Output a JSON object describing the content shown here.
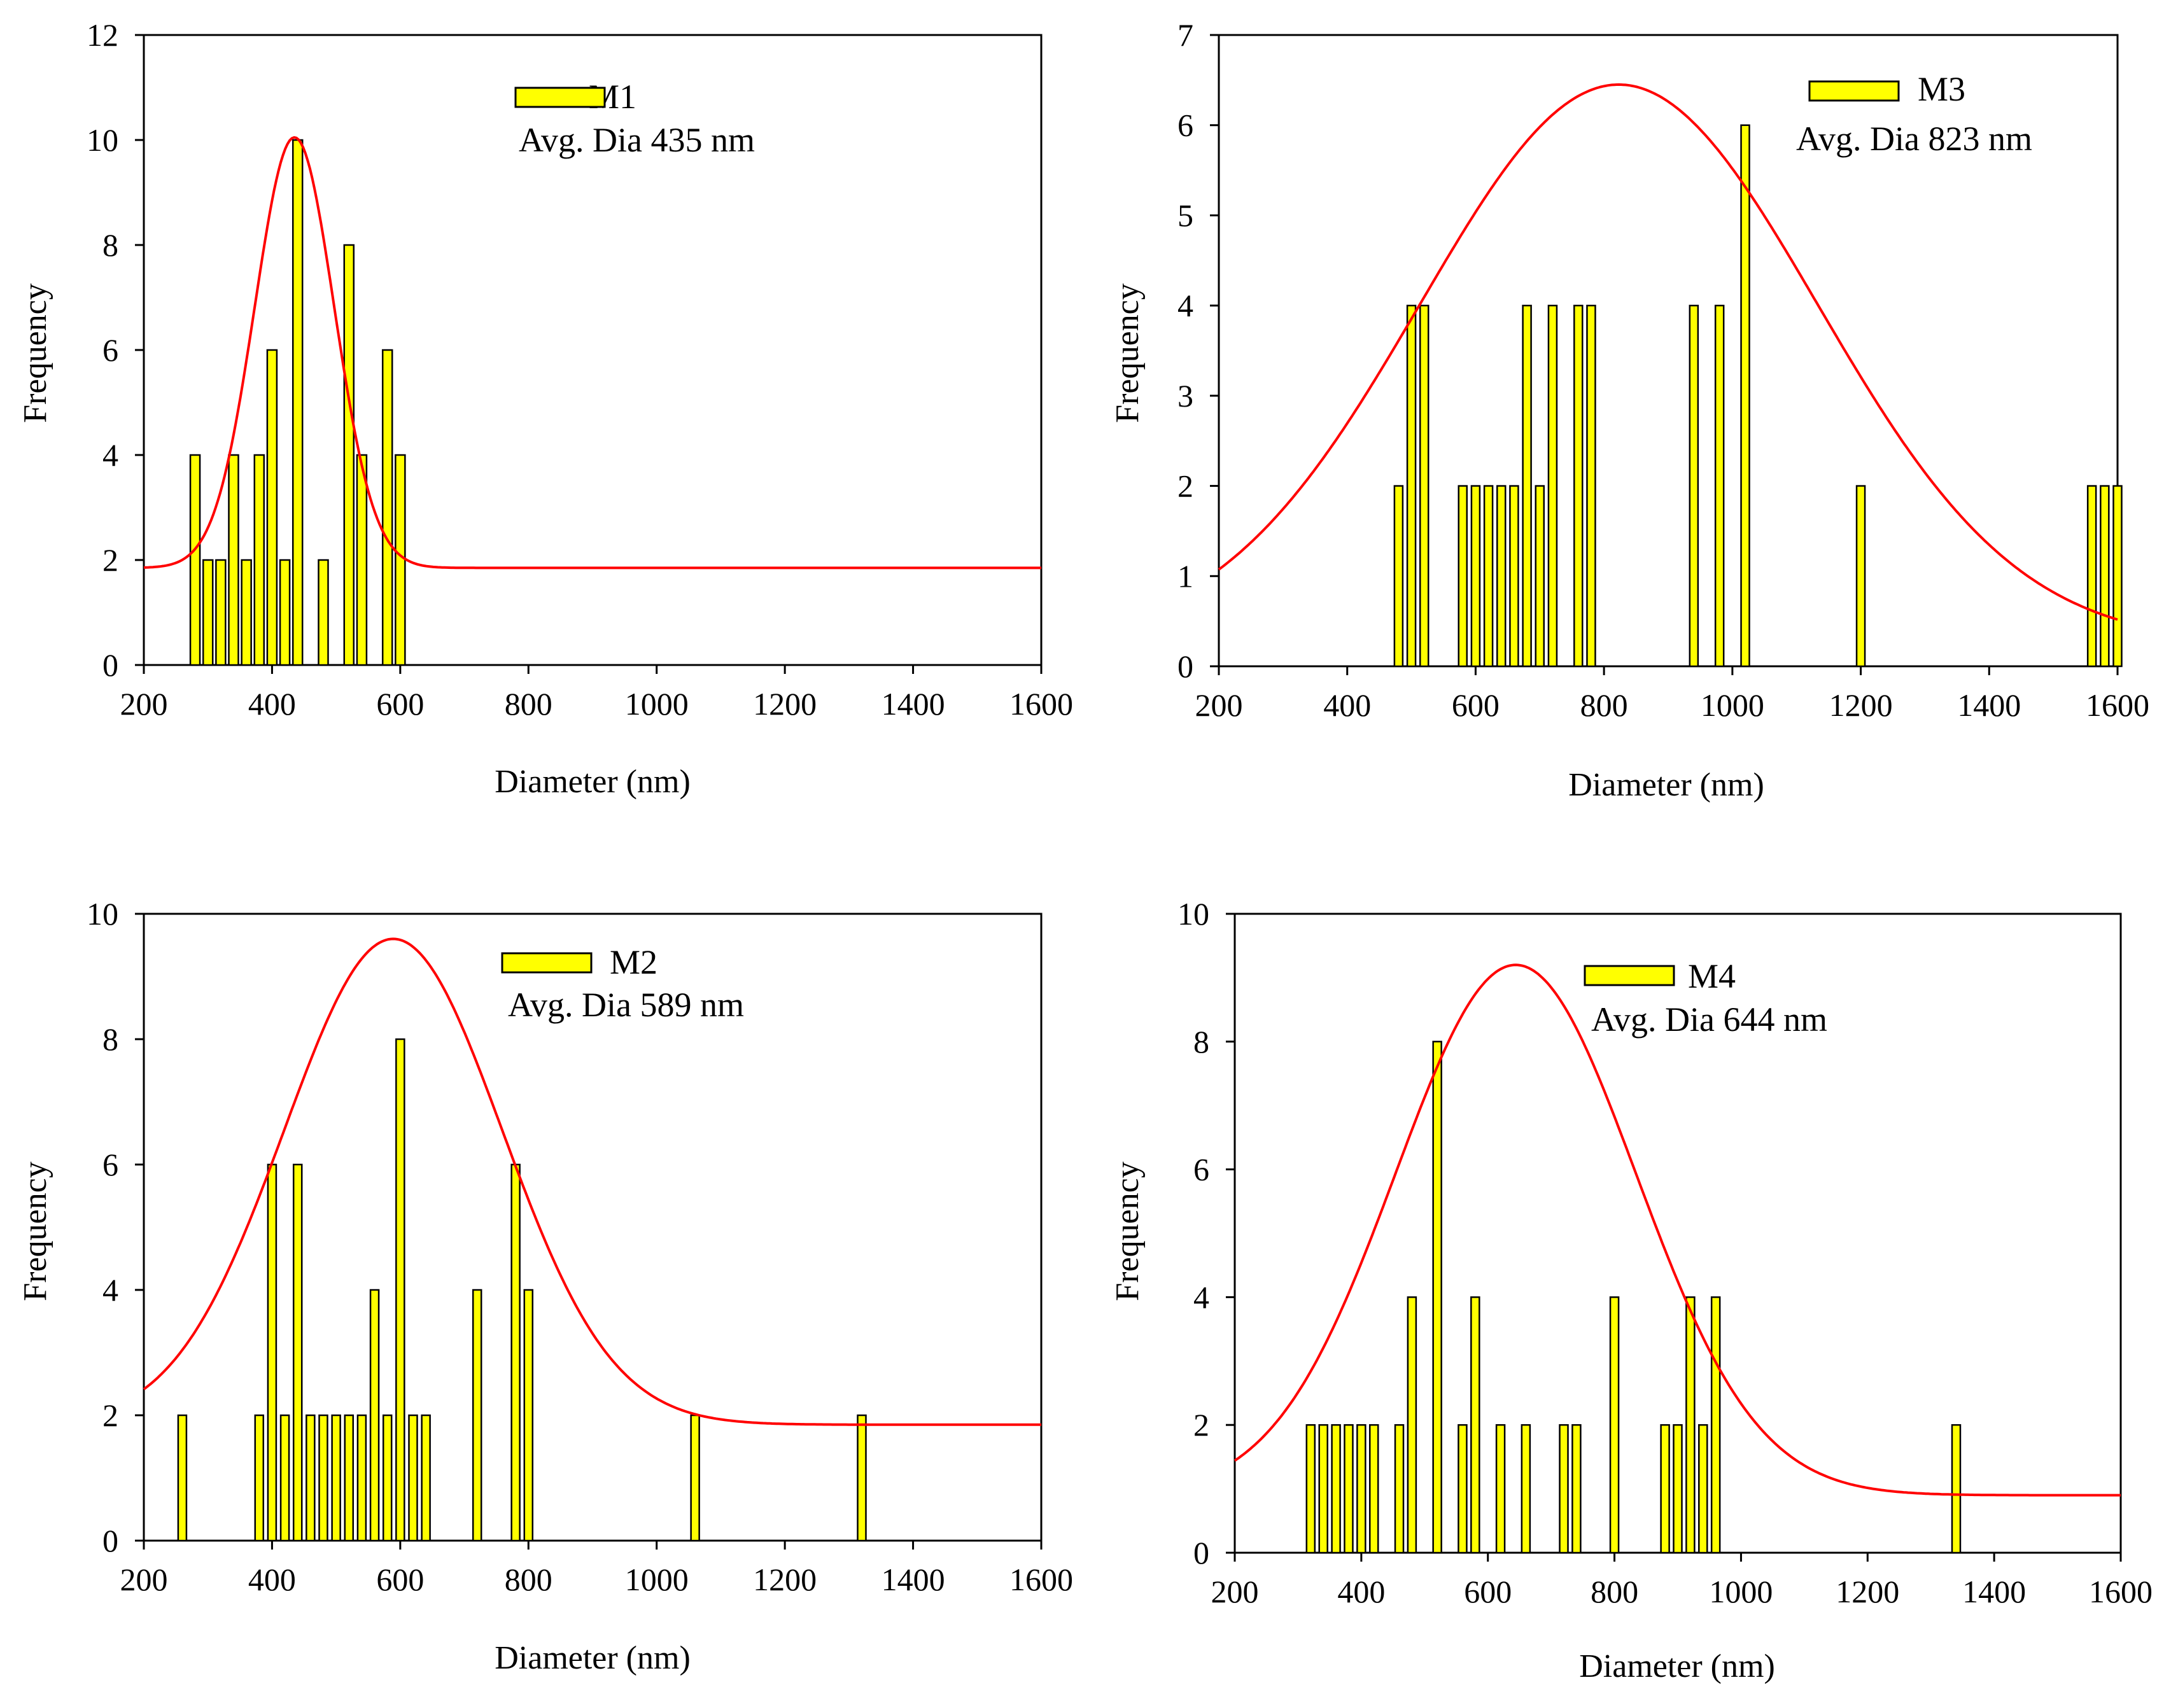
{
  "colors": {
    "bar_fill": "#ffff00",
    "bar_stroke": "#000000",
    "fit_line": "#ff0000",
    "axis": "#000000"
  },
  "chart_data": [
    {
      "id": "M1",
      "type": "bar",
      "xlabel": "Diameter (nm)",
      "ylabel": "Frequency",
      "xlim": [
        200,
        1600
      ],
      "ylim": [
        0,
        12
      ],
      "xticks": [
        200,
        400,
        600,
        800,
        1000,
        1200,
        1400,
        1600
      ],
      "yticks": [
        0,
        2,
        4,
        6,
        8,
        10,
        12
      ],
      "legend": {
        "label": "M1",
        "note": "Avg. Dia 435 nm"
      },
      "x": [
        280,
        300,
        320,
        340,
        360,
        380,
        400,
        420,
        440,
        480,
        520,
        540,
        580,
        600
      ],
      "values": [
        4,
        2,
        2,
        4,
        2,
        4,
        6,
        2,
        10,
        2,
        8,
        4,
        6,
        4
      ],
      "fit": {
        "type": "gaussian",
        "mean": 435,
        "sigma": 62,
        "amplitude": 8.2,
        "baseline": 1.85
      }
    },
    {
      "id": "M3",
      "type": "bar",
      "xlabel": "Diameter (nm)",
      "ylabel": "Frequency",
      "xlim": [
        200,
        1600
      ],
      "ylim": [
        0,
        7
      ],
      "xticks": [
        200,
        400,
        600,
        800,
        1000,
        1200,
        1400,
        1600
      ],
      "yticks": [
        0,
        1,
        2,
        3,
        4,
        5,
        6,
        7
      ],
      "legend": {
        "label": "M3",
        "note": "Avg. Dia 823 nm"
      },
      "x": [
        480,
        500,
        520,
        580,
        600,
        620,
        640,
        660,
        680,
        700,
        720,
        760,
        780,
        940,
        980,
        1020,
        1200,
        1560,
        1580,
        1600
      ],
      "values": [
        2,
        4,
        4,
        2,
        2,
        2,
        2,
        2,
        4,
        2,
        4,
        4,
        4,
        4,
        4,
        6,
        2,
        2,
        2,
        2
      ],
      "fit": {
        "type": "gaussian",
        "mean": 823,
        "sigma": 310,
        "amplitude": 6.2,
        "baseline": 0.25
      }
    },
    {
      "id": "M2",
      "type": "bar",
      "xlabel": "Diameter (nm)",
      "ylabel": "Frequency",
      "xlim": [
        200,
        1600
      ],
      "ylim": [
        0,
        10
      ],
      "xticks": [
        200,
        400,
        600,
        800,
        1000,
        1200,
        1400,
        1600
      ],
      "yticks": [
        0,
        2,
        4,
        6,
        8,
        10
      ],
      "legend": {
        "label": "M2",
        "note": "Avg. Dia 589 nm"
      },
      "x": [
        260,
        380,
        400,
        420,
        440,
        460,
        480,
        500,
        520,
        540,
        560,
        580,
        600,
        620,
        640,
        720,
        780,
        800,
        1060,
        1320
      ],
      "values": [
        2,
        2,
        6,
        2,
        6,
        2,
        2,
        2,
        2,
        2,
        4,
        2,
        8,
        2,
        2,
        4,
        6,
        4,
        2,
        2
      ],
      "fit": {
        "type": "gaussian",
        "mean": 589,
        "sigma": 170,
        "amplitude": 7.75,
        "baseline": 1.85
      }
    },
    {
      "id": "M4",
      "type": "bar",
      "xlabel": "Diameter (nm)",
      "ylabel": "Frequency",
      "xlim": [
        200,
        1600
      ],
      "ylim": [
        0,
        10
      ],
      "xticks": [
        200,
        400,
        600,
        800,
        1000,
        1200,
        1400,
        1600
      ],
      "yticks": [
        0,
        2,
        4,
        6,
        8,
        10
      ],
      "legend": {
        "label": "M4",
        "note": "Avg. Dia 644 nm"
      },
      "x": [
        320,
        340,
        360,
        380,
        400,
        420,
        460,
        480,
        520,
        560,
        580,
        620,
        660,
        720,
        740,
        800,
        880,
        900,
        920,
        940,
        960,
        1340
      ],
      "values": [
        2,
        2,
        2,
        2,
        2,
        2,
        2,
        4,
        8,
        2,
        4,
        2,
        2,
        2,
        2,
        4,
        2,
        2,
        4,
        2,
        4,
        2
      ],
      "fit": {
        "type": "gaussian",
        "mean": 644,
        "sigma": 190,
        "amplitude": 8.3,
        "baseline": 0.9
      }
    }
  ]
}
